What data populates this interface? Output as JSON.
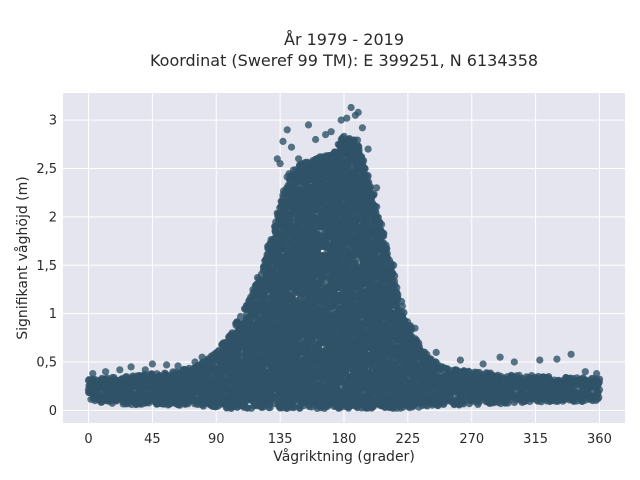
{
  "chart_data": {
    "type": "scatter",
    "title_lines": [
      "År 1979 - 2019",
      "Koordinat (Sweref 99 TM): E 399251, N 6134358"
    ],
    "xlabel": "Vågriktning (grader)",
    "ylabel": "Signifikant våghöjd (m)",
    "xlim": [
      -18,
      378
    ],
    "ylim": [
      -0.13,
      3.28
    ],
    "xticks": [
      0,
      45,
      90,
      135,
      180,
      225,
      270,
      315,
      360
    ],
    "xtick_labels": [
      "0",
      "45",
      "90",
      "135",
      "180",
      "225",
      "270",
      "315",
      "360"
    ],
    "yticks": [
      0,
      0.5,
      1,
      1.5,
      2,
      2.5,
      3
    ],
    "ytick_labels": [
      "0",
      "0,5",
      "1",
      "1,5",
      "2",
      "2,5",
      "3"
    ],
    "grid": true,
    "legend": "none",
    "colors": {
      "marker": "#2f5268",
      "plot_bg": "#e5e5ef",
      "grid": "#ffffff"
    },
    "envelope": {
      "direction_deg": [
        0,
        15,
        30,
        45,
        60,
        75,
        90,
        100,
        110,
        120,
        130,
        135,
        140,
        150,
        160,
        170,
        180,
        190,
        200,
        210,
        220,
        230,
        240,
        250,
        270,
        290,
        315,
        340,
        360
      ],
      "upper_hs_m": [
        0.32,
        0.34,
        0.36,
        0.38,
        0.4,
        0.45,
        0.6,
        0.8,
        1.05,
        1.4,
        1.85,
        2.15,
        2.45,
        2.55,
        2.6,
        2.65,
        2.85,
        2.8,
        2.3,
        1.7,
        1.15,
        0.75,
        0.55,
        0.45,
        0.4,
        0.38,
        0.36,
        0.34,
        0.33
      ],
      "lower_hs_m": [
        0.08,
        0.07,
        0.06,
        0.06,
        0.05,
        0.04,
        0.03,
        0.02,
        0.02,
        0.02,
        0.02,
        0.02,
        0.02,
        0.02,
        0.02,
        0.02,
        0.02,
        0.02,
        0.02,
        0.02,
        0.02,
        0.03,
        0.04,
        0.05,
        0.06,
        0.07,
        0.08,
        0.09,
        0.1
      ]
    },
    "outliers": [
      {
        "x": 3,
        "y": 0.38
      },
      {
        "x": 12,
        "y": 0.4
      },
      {
        "x": 22,
        "y": 0.42
      },
      {
        "x": 30,
        "y": 0.45
      },
      {
        "x": 40,
        "y": 0.42
      },
      {
        "x": 45,
        "y": 0.48
      },
      {
        "x": 55,
        "y": 0.47
      },
      {
        "x": 63,
        "y": 0.46
      },
      {
        "x": 75,
        "y": 0.5
      },
      {
        "x": 80,
        "y": 0.55
      },
      {
        "x": 105,
        "y": 0.75
      },
      {
        "x": 117,
        "y": 1.0
      },
      {
        "x": 128,
        "y": 1.55
      },
      {
        "x": 133,
        "y": 2.6
      },
      {
        "x": 135,
        "y": 2.55
      },
      {
        "x": 137,
        "y": 2.78
      },
      {
        "x": 140,
        "y": 2.9
      },
      {
        "x": 143,
        "y": 2.72
      },
      {
        "x": 148,
        "y": 2.6
      },
      {
        "x": 152,
        "y": 2.5
      },
      {
        "x": 155,
        "y": 2.95
      },
      {
        "x": 160,
        "y": 2.8
      },
      {
        "x": 163,
        "y": 2.62
      },
      {
        "x": 167,
        "y": 2.85
      },
      {
        "x": 171,
        "y": 2.88
      },
      {
        "x": 176,
        "y": 2.75
      },
      {
        "x": 178,
        "y": 3.0
      },
      {
        "x": 182,
        "y": 3.02
      },
      {
        "x": 185,
        "y": 3.13
      },
      {
        "x": 188,
        "y": 3.05
      },
      {
        "x": 190,
        "y": 3.08
      },
      {
        "x": 193,
        "y": 2.92
      },
      {
        "x": 197,
        "y": 2.7
      },
      {
        "x": 203,
        "y": 2.3
      },
      {
        "x": 215,
        "y": 1.5
      },
      {
        "x": 230,
        "y": 0.85
      },
      {
        "x": 245,
        "y": 0.6
      },
      {
        "x": 262,
        "y": 0.52
      },
      {
        "x": 278,
        "y": 0.48
      },
      {
        "x": 290,
        "y": 0.55
      },
      {
        "x": 300,
        "y": 0.5
      },
      {
        "x": 318,
        "y": 0.52
      },
      {
        "x": 330,
        "y": 0.53
      },
      {
        "x": 340,
        "y": 0.58
      },
      {
        "x": 350,
        "y": 0.4
      },
      {
        "x": 358,
        "y": 0.38
      }
    ]
  }
}
